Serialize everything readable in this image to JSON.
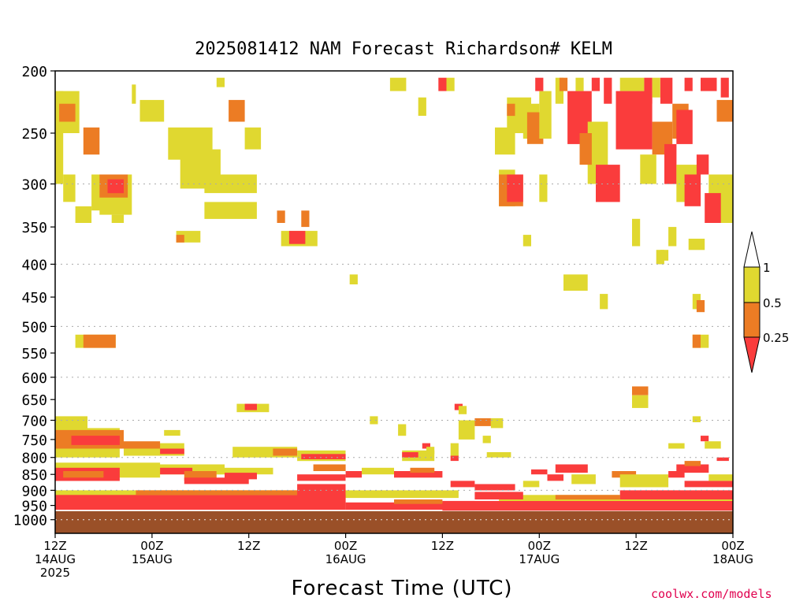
{
  "chart_data": {
    "type": "heatmap",
    "title": "2025081412 NAM Forecast Richardson# KELM",
    "xlabel": "Forecast Time (UTC)",
    "credit": "coolwx.com/models",
    "yticks": [
      200,
      250,
      300,
      350,
      400,
      450,
      500,
      550,
      600,
      650,
      700,
      750,
      800,
      850,
      900,
      950,
      1000
    ],
    "ylim": [
      1050,
      200
    ],
    "grid_levels": [
      300,
      400,
      500,
      600,
      700,
      800,
      900,
      1000
    ],
    "grid": "dotted horizontal",
    "xlim": [
      0,
      84
    ],
    "xticks": [
      {
        "h": 0,
        "l1": "12Z",
        "l2": "14AUG",
        "l3": "2025"
      },
      {
        "h": 12,
        "l1": "00Z",
        "l2": "15AUG",
        "l3": ""
      },
      {
        "h": 24,
        "l1": "12Z",
        "l2": "",
        "l3": ""
      },
      {
        "h": 36,
        "l1": "00Z",
        "l2": "16AUG",
        "l3": ""
      },
      {
        "h": 48,
        "l1": "12Z",
        "l2": "",
        "l3": ""
      },
      {
        "h": 60,
        "l1": "00Z",
        "l2": "17AUG",
        "l3": ""
      },
      {
        "h": 72,
        "l1": "12Z",
        "l2": "",
        "l3": ""
      },
      {
        "h": 84,
        "l1": "00Z",
        "l2": "18AUG",
        "l3": ""
      }
    ],
    "colorbar": {
      "placement": "right",
      "labels": [
        "1",
        "0.5",
        "0.25"
      ],
      "bins": [
        {
          "range": "0.5-1",
          "color": "#e0d830"
        },
        {
          "range": "0.25-0.5",
          "color": "#ec7c24"
        },
        {
          "range": "<0.25",
          "color": "#fa3c3c"
        }
      ],
      "upper_extension": "#ffffff"
    },
    "colors": {
      "yellow": "#e0d830",
      "orange": "#ec7c24",
      "red": "#fa3c3c",
      "ground": "#9a5028"
    },
    "surface_pressure": 970,
    "patches": [
      {
        "c": "y",
        "t0": 0,
        "t1": 1,
        "p0": 215,
        "p1": 300
      },
      {
        "c": "y",
        "t0": 0.5,
        "t1": 3,
        "p0": 215,
        "p1": 250
      },
      {
        "c": "o",
        "t0": 0.5,
        "t1": 2.5,
        "p0": 225,
        "p1": 240
      },
      {
        "c": "y",
        "t0": 1,
        "t1": 2.5,
        "p0": 290,
        "p1": 320
      },
      {
        "c": "y",
        "t0": 2.5,
        "t1": 4.5,
        "p0": 325,
        "p1": 345
      },
      {
        "c": "o",
        "t0": 3.5,
        "t1": 5.5,
        "p0": 245,
        "p1": 270
      },
      {
        "c": "y",
        "t0": 4.5,
        "t1": 6,
        "p0": 290,
        "p1": 330
      },
      {
        "c": "y",
        "t0": 5.5,
        "t1": 9.5,
        "p0": 290,
        "p1": 335
      },
      {
        "c": "o",
        "t0": 5.5,
        "t1": 9,
        "p0": 290,
        "p1": 315
      },
      {
        "c": "r",
        "t0": 6.5,
        "t1": 8.5,
        "p0": 295,
        "p1": 310
      },
      {
        "c": "y",
        "t0": 7,
        "t1": 8.5,
        "p0": 335,
        "p1": 345
      },
      {
        "c": "y",
        "t0": 9.5,
        "t1": 10,
        "p0": 210,
        "p1": 225
      },
      {
        "c": "y",
        "t0": 10.5,
        "t1": 13.5,
        "p0": 222,
        "p1": 240
      },
      {
        "c": "y",
        "t0": 14,
        "t1": 19.5,
        "p0": 245,
        "p1": 275
      },
      {
        "c": "y",
        "t0": 15.5,
        "t1": 20.5,
        "p0": 265,
        "p1": 305
      },
      {
        "c": "y",
        "t0": 18.5,
        "t1": 25,
        "p0": 290,
        "p1": 310
      },
      {
        "c": "y",
        "t0": 18.5,
        "t1": 25,
        "p0": 320,
        "p1": 340
      },
      {
        "c": "y",
        "t0": 15,
        "t1": 18,
        "p0": 355,
        "p1": 370
      },
      {
        "c": "o",
        "t0": 15,
        "t1": 16,
        "p0": 360,
        "p1": 370
      },
      {
        "c": "y",
        "t0": 20,
        "t1": 21,
        "p0": 205,
        "p1": 212
      },
      {
        "c": "o",
        "t0": 21.5,
        "t1": 23.5,
        "p0": 222,
        "p1": 240
      },
      {
        "c": "y",
        "t0": 23.5,
        "t1": 25.5,
        "p0": 245,
        "p1": 265
      },
      {
        "c": "o",
        "t0": 27.5,
        "t1": 28.5,
        "p0": 330,
        "p1": 345
      },
      {
        "c": "y",
        "t0": 28,
        "t1": 32.5,
        "p0": 355,
        "p1": 375
      },
      {
        "c": "r",
        "t0": 29,
        "t1": 31,
        "p0": 355,
        "p1": 372
      },
      {
        "c": "o",
        "t0": 30.5,
        "t1": 31.5,
        "p0": 330,
        "p1": 350
      },
      {
        "c": "y",
        "t0": 36.5,
        "t1": 37.5,
        "p0": 415,
        "p1": 430
      },
      {
        "c": "y",
        "t0": 41.5,
        "t1": 43.5,
        "p0": 205,
        "p1": 215
      },
      {
        "c": "y",
        "t0": 45,
        "t1": 46,
        "p0": 220,
        "p1": 235
      },
      {
        "c": "r",
        "t0": 47.5,
        "t1": 48.5,
        "p0": 205,
        "p1": 215
      },
      {
        "c": "y",
        "t0": 48.5,
        "t1": 49.5,
        "p0": 205,
        "p1": 215
      },
      {
        "c": "y",
        "t0": 54.5,
        "t1": 57,
        "p0": 245,
        "p1": 270
      },
      {
        "c": "y",
        "t0": 55,
        "t1": 57,
        "p0": 285,
        "p1": 325
      },
      {
        "c": "o",
        "t0": 55,
        "t1": 58,
        "p0": 290,
        "p1": 325
      },
      {
        "c": "r",
        "t0": 56,
        "t1": 58,
        "p0": 290,
        "p1": 320
      },
      {
        "c": "y",
        "t0": 56,
        "t1": 59,
        "p0": 220,
        "p1": 250
      },
      {
        "c": "o",
        "t0": 56,
        "t1": 57,
        "p0": 225,
        "p1": 235
      },
      {
        "c": "y",
        "t0": 58,
        "t1": 60,
        "p0": 225,
        "p1": 255
      },
      {
        "c": "o",
        "t0": 58.5,
        "t1": 60.5,
        "p0": 232,
        "p1": 260
      },
      {
        "c": "y",
        "t0": 60,
        "t1": 61.5,
        "p0": 215,
        "p1": 255
      },
      {
        "c": "r",
        "t0": 59.5,
        "t1": 60.5,
        "p0": 205,
        "p1": 215
      },
      {
        "c": "y",
        "t0": 60,
        "t1": 61,
        "p0": 290,
        "p1": 320
      },
      {
        "c": "y",
        "t0": 62,
        "t1": 63,
        "p0": 205,
        "p1": 225
      },
      {
        "c": "o",
        "t0": 62.5,
        "t1": 63.5,
        "p0": 205,
        "p1": 215
      },
      {
        "c": "y",
        "t0": 64.5,
        "t1": 65.5,
        "p0": 205,
        "p1": 215
      },
      {
        "c": "r",
        "t0": 63.5,
        "t1": 66.5,
        "p0": 215,
        "p1": 260
      },
      {
        "c": "y",
        "t0": 66,
        "t1": 68.5,
        "p0": 240,
        "p1": 300
      },
      {
        "c": "o",
        "t0": 65,
        "t1": 66.5,
        "p0": 250,
        "p1": 280
      },
      {
        "c": "r",
        "t0": 67,
        "t1": 70,
        "p0": 280,
        "p1": 320
      },
      {
        "c": "r",
        "t0": 66.5,
        "t1": 67.5,
        "p0": 205,
        "p1": 215
      },
      {
        "c": "r",
        "t0": 68,
        "t1": 69,
        "p0": 205,
        "p1": 225
      },
      {
        "c": "y",
        "t0": 70,
        "t1": 73,
        "p0": 205,
        "p1": 215
      },
      {
        "c": "r",
        "t0": 69.5,
        "t1": 74,
        "p0": 215,
        "p1": 265
      },
      {
        "c": "r",
        "t0": 73,
        "t1": 74,
        "p0": 205,
        "p1": 225
      },
      {
        "c": "y",
        "t0": 74,
        "t1": 75,
        "p0": 205,
        "p1": 220
      },
      {
        "c": "r",
        "t0": 75,
        "t1": 76.5,
        "p0": 205,
        "p1": 225
      },
      {
        "c": "o",
        "t0": 74,
        "t1": 76.5,
        "p0": 240,
        "p1": 270
      },
      {
        "c": "y",
        "t0": 72.5,
        "t1": 74.5,
        "p0": 270,
        "p1": 300
      },
      {
        "c": "o",
        "t0": 76.5,
        "t1": 78.5,
        "p0": 225,
        "p1": 255
      },
      {
        "c": "r",
        "t0": 77,
        "t1": 79,
        "p0": 230,
        "p1": 260
      },
      {
        "c": "r",
        "t0": 78,
        "t1": 79,
        "p0": 205,
        "p1": 215
      },
      {
        "c": "r",
        "t0": 75.5,
        "t1": 77,
        "p0": 260,
        "p1": 300
      },
      {
        "c": "y",
        "t0": 77,
        "t1": 80,
        "p0": 280,
        "p1": 320
      },
      {
        "c": "r",
        "t0": 78,
        "t1": 80,
        "p0": 290,
        "p1": 325
      },
      {
        "c": "r",
        "t0": 80,
        "t1": 82,
        "p0": 205,
        "p1": 215
      },
      {
        "c": "r",
        "t0": 82.5,
        "t1": 83.5,
        "p0": 205,
        "p1": 220
      },
      {
        "c": "o",
        "t0": 82,
        "t1": 84,
        "p0": 222,
        "p1": 240
      },
      {
        "c": "r",
        "t0": 79.5,
        "t1": 81,
        "p0": 270,
        "p1": 290
      },
      {
        "c": "y",
        "t0": 81,
        "t1": 84,
        "p0": 290,
        "p1": 345
      },
      {
        "c": "r",
        "t0": 80.5,
        "t1": 82.5,
        "p0": 310,
        "p1": 345
      },
      {
        "c": "y",
        "t0": 71.5,
        "t1": 72.5,
        "p0": 340,
        "p1": 375
      },
      {
        "c": "y",
        "t0": 74.5,
        "t1": 75.5,
        "p0": 380,
        "p1": 400
      },
      {
        "c": "y",
        "t0": 76,
        "t1": 77,
        "p0": 350,
        "p1": 375
      },
      {
        "c": "y",
        "t0": 78.5,
        "t1": 80.5,
        "p0": 365,
        "p1": 380
      },
      {
        "c": "y",
        "t0": 63,
        "t1": 66,
        "p0": 415,
        "p1": 440
      },
      {
        "c": "y",
        "t0": 67.5,
        "t1": 68.5,
        "p0": 445,
        "p1": 470
      },
      {
        "c": "y",
        "t0": 75,
        "t1": 76,
        "p0": 380,
        "p1": 395
      },
      {
        "c": "y",
        "t0": 79,
        "t1": 80,
        "p0": 445,
        "p1": 470
      },
      {
        "c": "o",
        "t0": 79.5,
        "t1": 80.5,
        "p0": 455,
        "p1": 475
      },
      {
        "c": "y",
        "t0": 79,
        "t1": 81,
        "p0": 515,
        "p1": 540
      },
      {
        "c": "o",
        "t0": 79,
        "t1": 80,
        "p0": 515,
        "p1": 540
      },
      {
        "c": "y",
        "t0": 2.5,
        "t1": 7.5,
        "p0": 515,
        "p1": 540
      },
      {
        "c": "o",
        "t0": 3.5,
        "t1": 7.5,
        "p0": 515,
        "p1": 540
      },
      {
        "c": "y",
        "t0": 58,
        "t1": 59,
        "p0": 360,
        "p1": 375
      },
      {
        "c": "o",
        "t0": 71.5,
        "t1": 73.5,
        "p0": 620,
        "p1": 640
      },
      {
        "c": "y",
        "t0": 71.5,
        "t1": 73.5,
        "p0": 640,
        "p1": 670
      },
      {
        "c": "y",
        "t0": 22.5,
        "t1": 26.5,
        "p0": 660,
        "p1": 680
      },
      {
        "c": "r",
        "t0": 23.5,
        "t1": 25,
        "p0": 660,
        "p1": 675
      },
      {
        "c": "y",
        "t0": 0,
        "t1": 4,
        "p0": 690,
        "p1": 720
      },
      {
        "c": "y",
        "t0": 0,
        "t1": 8,
        "p0": 720,
        "p1": 800
      },
      {
        "c": "o",
        "t0": 0,
        "t1": 8.5,
        "p0": 725,
        "p1": 775
      },
      {
        "c": "r",
        "t0": 2,
        "t1": 8,
        "p0": 740,
        "p1": 765
      },
      {
        "c": "y",
        "t0": 8.5,
        "t1": 16,
        "p0": 760,
        "p1": 795
      },
      {
        "c": "o",
        "t0": 8.5,
        "t1": 13,
        "p0": 755,
        "p1": 775
      },
      {
        "c": "r",
        "t0": 13,
        "t1": 16,
        "p0": 775,
        "p1": 790
      },
      {
        "c": "y",
        "t0": 13.5,
        "t1": 15.5,
        "p0": 725,
        "p1": 740
      },
      {
        "c": "y",
        "t0": 22,
        "t1": 30,
        "p0": 770,
        "p1": 800
      },
      {
        "c": "o",
        "t0": 27,
        "t1": 30,
        "p0": 775,
        "p1": 795
      },
      {
        "c": "y",
        "t0": 30,
        "t1": 36,
        "p0": 780,
        "p1": 810
      },
      {
        "c": "r",
        "t0": 30.5,
        "t1": 36,
        "p0": 790,
        "p1": 805
      },
      {
        "c": "y",
        "t0": 43,
        "t1": 47,
        "p0": 780,
        "p1": 810
      },
      {
        "c": "r",
        "t0": 43,
        "t1": 45,
        "p0": 785,
        "p1": 800
      },
      {
        "c": "r",
        "t0": 45.5,
        "t1": 46.5,
        "p0": 760,
        "p1": 775
      },
      {
        "c": "y",
        "t0": 46,
        "t1": 47,
        "p0": 770,
        "p1": 790
      },
      {
        "c": "y",
        "t0": 49,
        "t1": 50,
        "p0": 760,
        "p1": 800
      },
      {
        "c": "r",
        "t0": 49,
        "t1": 50,
        "p0": 795,
        "p1": 810
      },
      {
        "c": "y",
        "t0": 50,
        "t1": 52,
        "p0": 700,
        "p1": 750
      },
      {
        "c": "o",
        "t0": 52,
        "t1": 54,
        "p0": 695,
        "p1": 715
      },
      {
        "c": "y",
        "t0": 54,
        "t1": 55.5,
        "p0": 695,
        "p1": 720
      },
      {
        "c": "y",
        "t0": 42.5,
        "t1": 43.5,
        "p0": 710,
        "p1": 740
      },
      {
        "c": "y",
        "t0": 39,
        "t1": 40,
        "p0": 690,
        "p1": 710
      },
      {
        "c": "y",
        "t0": 53,
        "t1": 54,
        "p0": 740,
        "p1": 760
      },
      {
        "c": "r",
        "t0": 49.5,
        "t1": 50.5,
        "p0": 660,
        "p1": 675
      },
      {
        "c": "y",
        "t0": 50,
        "t1": 51,
        "p0": 665,
        "p1": 685
      },
      {
        "c": "y",
        "t0": 53.5,
        "t1": 56.5,
        "p0": 785,
        "p1": 800
      },
      {
        "c": "y",
        "t0": 76,
        "t1": 78,
        "p0": 760,
        "p1": 775
      },
      {
        "c": "y",
        "t0": 79,
        "t1": 80,
        "p0": 690,
        "p1": 705
      },
      {
        "c": "r",
        "t0": 80,
        "t1": 81,
        "p0": 740,
        "p1": 755
      },
      {
        "c": "y",
        "t0": 80.5,
        "t1": 82.5,
        "p0": 755,
        "p1": 775
      },
      {
        "c": "r",
        "t0": 82,
        "t1": 83.5,
        "p0": 800,
        "p1": 810
      },
      {
        "c": "y",
        "t0": 0,
        "t1": 13,
        "p0": 815,
        "p1": 860
      },
      {
        "c": "r",
        "t0": 0,
        "t1": 8,
        "p0": 830,
        "p1": 870
      },
      {
        "c": "o",
        "t0": 1,
        "t1": 6,
        "p0": 840,
        "p1": 860
      },
      {
        "c": "y",
        "t0": 12,
        "t1": 21,
        "p0": 820,
        "p1": 850
      },
      {
        "c": "r",
        "t0": 13,
        "t1": 17,
        "p0": 830,
        "p1": 850
      },
      {
        "c": "o",
        "t0": 16,
        "t1": 20,
        "p0": 840,
        "p1": 870
      },
      {
        "c": "r",
        "t0": 16,
        "t1": 24,
        "p0": 860,
        "p1": 880
      },
      {
        "c": "y",
        "t0": 20,
        "t1": 27,
        "p0": 830,
        "p1": 850
      },
      {
        "c": "r",
        "t0": 21,
        "t1": 25,
        "p0": 845,
        "p1": 865
      },
      {
        "c": "r",
        "t0": 30,
        "t1": 36,
        "p0": 850,
        "p1": 870
      },
      {
        "c": "o",
        "t0": 32,
        "t1": 36,
        "p0": 820,
        "p1": 840
      },
      {
        "c": "r",
        "t0": 36,
        "t1": 38,
        "p0": 840,
        "p1": 860
      },
      {
        "c": "y",
        "t0": 38,
        "t1": 42,
        "p0": 830,
        "p1": 850
      },
      {
        "c": "r",
        "t0": 42,
        "t1": 48,
        "p0": 840,
        "p1": 860
      },
      {
        "c": "o",
        "t0": 44,
        "t1": 47,
        "p0": 830,
        "p1": 845
      },
      {
        "c": "r",
        "t0": 49,
        "t1": 52,
        "p0": 870,
        "p1": 890
      },
      {
        "c": "r",
        "t0": 52,
        "t1": 57,
        "p0": 880,
        "p1": 900
      },
      {
        "c": "y",
        "t0": 58,
        "t1": 60,
        "p0": 870,
        "p1": 890
      },
      {
        "c": "r",
        "t0": 59,
        "t1": 61,
        "p0": 835,
        "p1": 850
      },
      {
        "c": "r",
        "t0": 61,
        "t1": 63,
        "p0": 850,
        "p1": 870
      },
      {
        "c": "r",
        "t0": 62,
        "t1": 66,
        "p0": 820,
        "p1": 845
      },
      {
        "c": "y",
        "t0": 64,
        "t1": 67,
        "p0": 850,
        "p1": 880
      },
      {
        "c": "o",
        "t0": 69,
        "t1": 72,
        "p0": 840,
        "p1": 860
      },
      {
        "c": "y",
        "t0": 70,
        "t1": 76,
        "p0": 850,
        "p1": 890
      },
      {
        "c": "r",
        "t0": 76,
        "t1": 78,
        "p0": 840,
        "p1": 860
      },
      {
        "c": "r",
        "t0": 77,
        "t1": 81,
        "p0": 820,
        "p1": 845
      },
      {
        "c": "o",
        "t0": 78,
        "t1": 80,
        "p0": 810,
        "p1": 825
      },
      {
        "c": "r",
        "t0": 78,
        "t1": 84,
        "p0": 870,
        "p1": 890
      },
      {
        "c": "y",
        "t0": 81,
        "t1": 84,
        "p0": 850,
        "p1": 870
      },
      {
        "c": "y",
        "t0": 0,
        "t1": 50,
        "p0": 900,
        "p1": 925
      },
      {
        "c": "r",
        "t0": 0,
        "t1": 36,
        "p0": 915,
        "p1": 965
      },
      {
        "c": "o",
        "t0": 10,
        "t1": 32,
        "p0": 900,
        "p1": 915
      },
      {
        "c": "r",
        "t0": 30,
        "t1": 36,
        "p0": 880,
        "p1": 930
      },
      {
        "c": "r",
        "t0": 36,
        "t1": 48,
        "p0": 940,
        "p1": 965
      },
      {
        "c": "o",
        "t0": 42,
        "t1": 48,
        "p0": 930,
        "p1": 945
      },
      {
        "c": "r",
        "t0": 48,
        "t1": 84,
        "p0": 935,
        "p1": 968
      },
      {
        "c": "y",
        "t0": 55,
        "t1": 84,
        "p0": 915,
        "p1": 935
      },
      {
        "c": "r",
        "t0": 52,
        "t1": 58,
        "p0": 905,
        "p1": 930
      },
      {
        "c": "r",
        "t0": 70,
        "t1": 84,
        "p0": 900,
        "p1": 930
      },
      {
        "c": "o",
        "t0": 62,
        "t1": 70,
        "p0": 915,
        "p1": 930
      }
    ]
  }
}
